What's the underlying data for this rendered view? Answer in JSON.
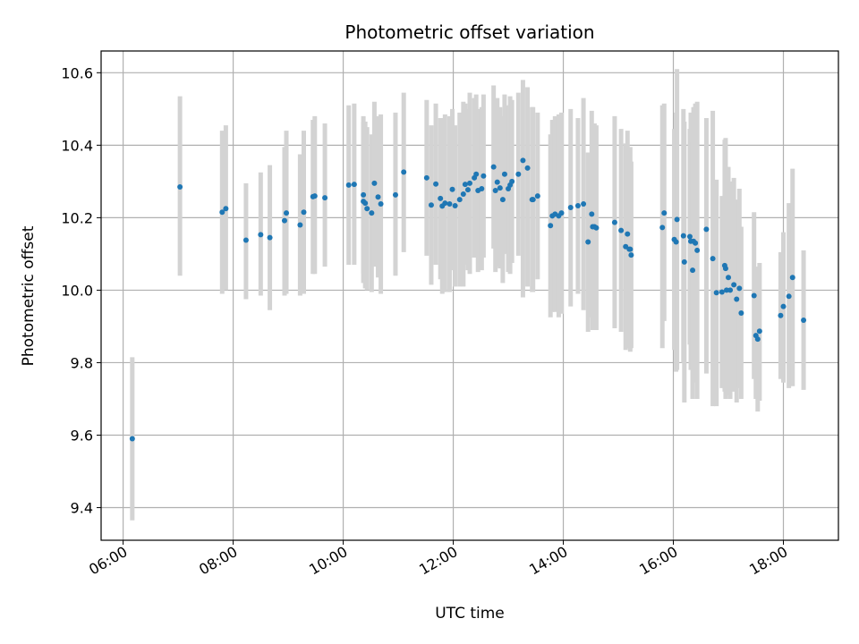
{
  "chart_data": {
    "type": "scatter",
    "title": "Photometric offset variation",
    "xlabel": "UTC time",
    "ylabel": "Photometric offset",
    "x_tick_labels": [
      "06:00",
      "08:00",
      "10:00",
      "12:00",
      "14:00",
      "16:00",
      "18:00"
    ],
    "y_tick_labels": [
      "9.4",
      "9.6",
      "9.8",
      "10.0",
      "10.2",
      "10.4",
      "10.6"
    ],
    "grid": true,
    "colors": {
      "points": "#1f77b4",
      "error_bars": "#d3d3d3",
      "grid": "#b0b0b0"
    },
    "series": [
      {
        "x": [
          "06:10",
          "07:02",
          "07:48",
          "07:52",
          "08:14",
          "08:30",
          "08:40",
          "08:56",
          "08:58",
          "09:13",
          "09:17",
          "09:27",
          "09:29",
          "09:40",
          "10:06",
          "10:12",
          "10:22",
          "10:22",
          "10:24",
          "10:26",
          "10:31",
          "10:34",
          "10:38",
          "10:41",
          "10:57",
          "11:06",
          "11:31",
          "11:36",
          "11:41",
          "11:46",
          "11:48",
          "11:51",
          "11:56",
          "11:59",
          "12:02",
          "12:07",
          "12:11",
          "12:13",
          "12:16",
          "12:18",
          "12:23",
          "12:25",
          "12:27",
          "12:31",
          "12:33",
          "12:44",
          "12:46",
          "12:48",
          "12:51",
          "12:54",
          "12:56",
          "13:00",
          "13:02",
          "13:04",
          "13:11",
          "13:16",
          "13:21",
          "13:26",
          "13:27",
          "13:32",
          "13:46",
          "13:48",
          "13:51",
          "13:55",
          "13:58",
          "14:08",
          "14:16",
          "14:22",
          "14:27",
          "14:31",
          "14:32",
          "14:34",
          "14:36",
          "14:56",
          "15:03",
          "15:08",
          "15:10",
          "15:12",
          "15:13",
          "15:14",
          "15:48",
          "15:50",
          "16:01",
          "16:03",
          "16:04",
          "16:11",
          "16:12",
          "16:18",
          "16:19",
          "16:21",
          "16:22",
          "16:24",
          "16:26",
          "16:36",
          "16:43",
          "16:47",
          "16:53",
          "16:56",
          "16:57",
          "16:58",
          "17:00",
          "17:02",
          "17:06",
          "17:09",
          "17:12",
          "17:14",
          "17:28",
          "17:30",
          "17:32",
          "17:34",
          "17:57",
          "18:00",
          "18:06",
          "18:10",
          "18:22"
        ],
        "y": [
          9.59,
          10.285,
          10.215,
          10.225,
          10.138,
          10.153,
          10.145,
          10.192,
          10.213,
          10.18,
          10.215,
          10.258,
          10.26,
          10.255,
          10.29,
          10.292,
          10.245,
          10.263,
          10.24,
          10.225,
          10.213,
          10.295,
          10.257,
          10.238,
          10.263,
          10.326,
          10.31,
          10.235,
          10.293,
          10.253,
          10.232,
          10.24,
          10.238,
          10.278,
          10.233,
          10.25,
          10.265,
          10.292,
          10.277,
          10.295,
          10.31,
          10.32,
          10.275,
          10.28,
          10.315,
          10.34,
          10.275,
          10.298,
          10.282,
          10.25,
          10.32,
          10.28,
          10.29,
          10.3,
          10.32,
          10.358,
          10.337,
          10.25,
          10.25,
          10.26,
          10.178,
          10.205,
          10.21,
          10.205,
          10.213,
          10.228,
          10.233,
          10.238,
          10.133,
          10.21,
          10.175,
          10.175,
          10.172,
          10.187,
          10.165,
          10.12,
          10.155,
          10.113,
          10.113,
          10.097,
          10.173,
          10.213,
          10.14,
          10.133,
          10.195,
          10.15,
          10.078,
          10.148,
          10.135,
          10.055,
          10.135,
          10.13,
          10.11,
          10.168,
          10.087,
          9.993,
          9.995,
          10.068,
          10.06,
          10.0,
          10.035,
          10.0,
          10.015,
          9.975,
          10.005,
          9.937,
          9.985,
          9.875,
          9.865,
          9.887,
          9.93,
          9.955,
          9.983,
          10.035,
          9.917
        ],
        "err_low": [
          9.365,
          10.04,
          9.99,
          10.0,
          9.975,
          9.985,
          9.945,
          9.985,
          9.99,
          9.985,
          9.99,
          10.045,
          10.045,
          10.065,
          10.07,
          10.07,
          10.02,
          10.045,
          10.005,
          10.0,
          9.995,
          10.065,
          10.035,
          9.99,
          10.04,
          10.105,
          10.095,
          10.015,
          10.07,
          10.03,
          9.99,
          9.995,
          9.995,
          10.055,
          10.01,
          10.01,
          10.01,
          10.07,
          10.055,
          10.045,
          10.09,
          10.1,
          10.05,
          10.055,
          10.09,
          10.115,
          10.05,
          10.065,
          10.06,
          10.02,
          10.1,
          10.05,
          10.045,
          10.075,
          10.095,
          9.98,
          10.01,
          9.995,
          9.995,
          10.03,
          9.925,
          9.94,
          9.94,
          9.925,
          9.935,
          9.955,
          9.99,
          9.945,
          9.885,
          9.925,
          9.89,
          9.89,
          9.89,
          9.895,
          9.885,
          9.835,
          9.87,
          9.84,
          9.83,
          9.84,
          9.84,
          9.915,
          9.835,
          9.775,
          9.78,
          9.8,
          9.69,
          9.85,
          9.78,
          9.7,
          9.765,
          9.745,
          9.7,
          9.77,
          9.68,
          9.68,
          9.73,
          9.72,
          9.7,
          9.71,
          9.73,
          9.7,
          9.72,
          9.69,
          9.73,
          9.7,
          9.755,
          9.7,
          9.665,
          9.695,
          9.755,
          9.745,
          9.73,
          9.735,
          9.725
        ],
        "err_high": [
          9.815,
          10.535,
          10.44,
          10.455,
          10.295,
          10.325,
          10.345,
          10.395,
          10.44,
          10.375,
          10.44,
          10.47,
          10.48,
          10.46,
          10.51,
          10.515,
          10.465,
          10.48,
          10.465,
          10.45,
          10.43,
          10.52,
          10.48,
          10.485,
          10.49,
          10.545,
          10.525,
          10.455,
          10.515,
          10.475,
          10.475,
          10.485,
          10.48,
          10.5,
          10.455,
          10.49,
          10.52,
          10.515,
          10.5,
          10.545,
          10.53,
          10.54,
          10.5,
          10.505,
          10.54,
          10.565,
          10.5,
          10.53,
          10.505,
          10.48,
          10.54,
          10.51,
          10.535,
          10.525,
          10.545,
          10.58,
          10.56,
          10.505,
          10.505,
          10.49,
          10.43,
          10.47,
          10.48,
          10.485,
          10.49,
          10.5,
          10.475,
          10.53,
          10.38,
          10.495,
          10.46,
          10.46,
          10.455,
          10.48,
          10.445,
          10.405,
          10.44,
          10.385,
          10.395,
          10.355,
          10.51,
          10.515,
          10.445,
          10.49,
          10.61,
          10.5,
          10.465,
          10.445,
          10.49,
          10.41,
          10.505,
          10.515,
          10.52,
          10.475,
          10.495,
          10.305,
          10.26,
          10.415,
          10.42,
          10.29,
          10.34,
          10.3,
          10.31,
          10.25,
          10.28,
          10.175,
          10.215,
          10.045,
          10.065,
          10.075,
          10.105,
          10.16,
          10.24,
          10.335,
          10.11
        ]
      }
    ]
  }
}
